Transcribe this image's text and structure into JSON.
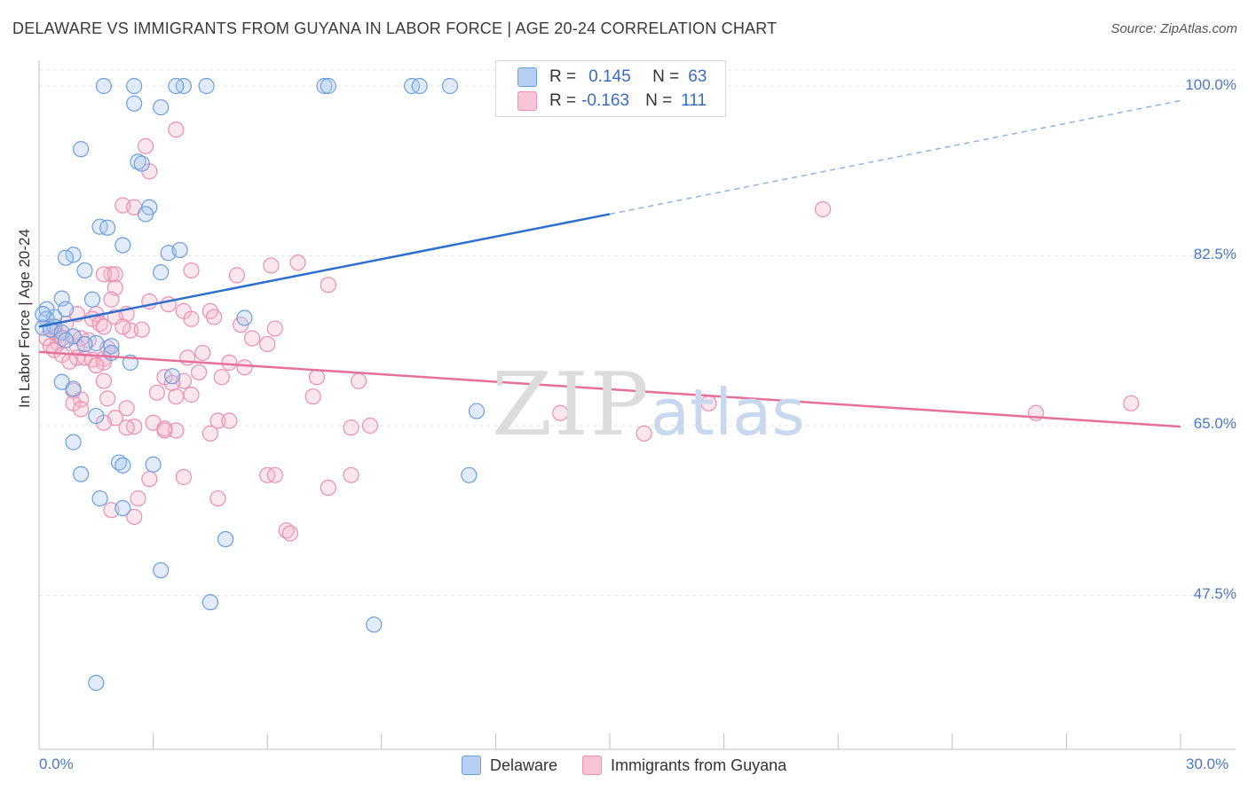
{
  "title": "DELAWARE VS IMMIGRANTS FROM GUYANA IN LABOR FORCE | AGE 20-24 CORRELATION CHART",
  "source": "Source: ZipAtlas.com",
  "watermark": {
    "zip": "ZIP",
    "atlas": "atlas"
  },
  "colors": {
    "delaware": "#6b9ee0",
    "guyana": "#ef8fb1",
    "delaware_line": "#2c6fce",
    "guyana_line": "#e5709a",
    "axis_text": "#4a78c8"
  },
  "legend": {
    "delaware": {
      "r_label": "R =",
      "r_value": "0.145",
      "n_label": "N =",
      "n_value": "63"
    },
    "guyana": {
      "r_label": "R =",
      "r_value": "-0.163",
      "n_label": "N =",
      "n_value": "111"
    }
  },
  "chart_data": {
    "type": "scatter",
    "title": "DELAWARE VS IMMIGRANTS FROM GUYANA IN LABOR FORCE | AGE 20-24 CORRELATION CHART",
    "xlabel": "",
    "ylabel": "In Labor Force | Age 20-24",
    "xlim": [
      0,
      30
    ],
    "ylim": [
      30,
      101.5
    ],
    "x_tick_labels": [
      "0.0%",
      "30.0%"
    ],
    "y_ticks": [
      47.5,
      65.0,
      82.5,
      100.0
    ],
    "y_tick_labels": [
      "47.5%",
      "65.0%",
      "82.5%",
      "100.0%"
    ],
    "series": [
      {
        "name": "Delaware",
        "color": "#6b9ee0",
        "trend": {
          "x0": 0.0,
          "y0": 75.2,
          "x1": 15.0,
          "y1": 86.8,
          "dash_to_x": 30.0,
          "dash_to_y": 98.5
        },
        "points": [
          [
            1.7,
            100
          ],
          [
            2.5,
            100
          ],
          [
            3.8,
            100
          ],
          [
            3.6,
            100
          ],
          [
            4.4,
            100
          ],
          [
            7.5,
            100
          ],
          [
            7.6,
            100
          ],
          [
            9.8,
            100
          ],
          [
            10.0,
            100
          ],
          [
            10.8,
            100
          ],
          [
            2.5,
            98.2
          ],
          [
            3.2,
            97.8
          ],
          [
            1.1,
            93.5
          ],
          [
            2.6,
            92.2
          ],
          [
            2.7,
            92.0
          ],
          [
            2.9,
            87.5
          ],
          [
            2.8,
            86.8
          ],
          [
            1.6,
            85.5
          ],
          [
            1.8,
            85.4
          ],
          [
            2.2,
            83.6
          ],
          [
            3.4,
            82.8
          ],
          [
            3.7,
            83.1
          ],
          [
            0.9,
            82.6
          ],
          [
            0.7,
            82.3
          ],
          [
            1.2,
            81.0
          ],
          [
            3.2,
            80.8
          ],
          [
            1.4,
            78.0
          ],
          [
            0.6,
            78.1
          ],
          [
            0.2,
            77.0
          ],
          [
            0.7,
            77.0
          ],
          [
            0.4,
            76.2
          ],
          [
            0.2,
            76.0
          ],
          [
            5.4,
            76.1
          ],
          [
            0.4,
            75.2
          ],
          [
            0.1,
            75.1
          ],
          [
            0.3,
            74.9
          ],
          [
            0.6,
            74.6
          ],
          [
            0.9,
            74.2
          ],
          [
            1.5,
            73.5
          ],
          [
            1.2,
            73.4
          ],
          [
            0.7,
            73.8
          ],
          [
            1.9,
            73.2
          ],
          [
            1.9,
            72.5
          ],
          [
            2.4,
            71.5
          ],
          [
            0.6,
            69.5
          ],
          [
            3.5,
            70.1
          ],
          [
            0.9,
            68.8
          ],
          [
            1.5,
            66.0
          ],
          [
            11.5,
            66.5
          ],
          [
            0.9,
            63.3
          ],
          [
            2.1,
            61.2
          ],
          [
            2.2,
            60.9
          ],
          [
            3.0,
            61.0
          ],
          [
            1.1,
            60.0
          ],
          [
            11.3,
            59.9
          ],
          [
            1.6,
            57.5
          ],
          [
            2.2,
            56.5
          ],
          [
            4.9,
            53.3
          ],
          [
            3.2,
            50.1
          ],
          [
            4.5,
            46.8
          ],
          [
            8.8,
            44.5
          ],
          [
            1.5,
            38.5
          ],
          [
            0.1,
            76.5
          ]
        ]
      },
      {
        "name": "Immigrants from Guyana",
        "color": "#ef8fb1",
        "trend": {
          "x0": 0.0,
          "y0": 72.6,
          "x1": 30.0,
          "y1": 64.9
        },
        "points": [
          [
            3.6,
            95.5
          ],
          [
            2.8,
            93.8
          ],
          [
            2.9,
            91.2
          ],
          [
            2.2,
            87.7
          ],
          [
            2.5,
            87.5
          ],
          [
            20.6,
            87.3
          ],
          [
            6.8,
            81.8
          ],
          [
            6.1,
            81.5
          ],
          [
            4.0,
            81.0
          ],
          [
            5.2,
            80.5
          ],
          [
            1.9,
            80.6
          ],
          [
            1.7,
            80.6
          ],
          [
            2.0,
            80.6
          ],
          [
            7.6,
            79.5
          ],
          [
            2.0,
            79.2
          ],
          [
            1.9,
            78.0
          ],
          [
            2.9,
            77.8
          ],
          [
            3.4,
            77.5
          ],
          [
            3.8,
            76.8
          ],
          [
            4.5,
            76.8
          ],
          [
            1.5,
            76.5
          ],
          [
            1.0,
            76.5
          ],
          [
            2.3,
            76.5
          ],
          [
            4.0,
            76.0
          ],
          [
            4.6,
            76.2
          ],
          [
            1.4,
            76.0
          ],
          [
            1.6,
            75.5
          ],
          [
            5.3,
            75.4
          ],
          [
            1.7,
            75.2
          ],
          [
            0.3,
            75.2
          ],
          [
            6.2,
            75.0
          ],
          [
            2.4,
            74.8
          ],
          [
            0.4,
            74.7
          ],
          [
            0.5,
            74.3
          ],
          [
            0.9,
            74.2
          ],
          [
            5.6,
            74.0
          ],
          [
            0.2,
            74.0
          ],
          [
            1.3,
            73.8
          ],
          [
            0.5,
            73.5
          ],
          [
            6.0,
            73.4
          ],
          [
            1.0,
            73.2
          ],
          [
            0.3,
            73.2
          ],
          [
            1.8,
            73.0
          ],
          [
            0.4,
            72.8
          ],
          [
            1.9,
            72.5
          ],
          [
            4.3,
            72.5
          ],
          [
            0.6,
            72.3
          ],
          [
            1.0,
            72.0
          ],
          [
            1.2,
            72.0
          ],
          [
            1.7,
            71.9
          ],
          [
            1.4,
            71.8
          ],
          [
            1.7,
            71.5
          ],
          [
            0.8,
            71.6
          ],
          [
            1.5,
            71.2
          ],
          [
            5.4,
            71.0
          ],
          [
            4.2,
            70.5
          ],
          [
            3.3,
            70.0
          ],
          [
            7.3,
            70.0
          ],
          [
            4.8,
            70.0
          ],
          [
            1.7,
            69.6
          ],
          [
            3.8,
            69.6
          ],
          [
            3.5,
            69.4
          ],
          [
            8.4,
            69.6
          ],
          [
            0.9,
            68.6
          ],
          [
            3.1,
            68.4
          ],
          [
            3.6,
            68.0
          ],
          [
            7.2,
            68.0
          ],
          [
            1.1,
            67.7
          ],
          [
            1.8,
            67.8
          ],
          [
            17.6,
            67.3
          ],
          [
            0.9,
            67.3
          ],
          [
            2.3,
            66.8
          ],
          [
            1.1,
            66.7
          ],
          [
            28.7,
            67.3
          ],
          [
            13.7,
            66.3
          ],
          [
            26.2,
            66.3
          ],
          [
            2.0,
            65.8
          ],
          [
            4.7,
            65.5
          ],
          [
            5.0,
            65.5
          ],
          [
            3.0,
            65.3
          ],
          [
            1.7,
            65.3
          ],
          [
            8.7,
            65.0
          ],
          [
            2.5,
            64.9
          ],
          [
            2.3,
            64.8
          ],
          [
            3.3,
            64.5
          ],
          [
            3.6,
            64.5
          ],
          [
            8.2,
            64.8
          ],
          [
            4.5,
            64.2
          ],
          [
            15.9,
            64.2
          ],
          [
            6.0,
            59.9
          ],
          [
            6.2,
            59.9
          ],
          [
            8.2,
            59.9
          ],
          [
            3.8,
            59.7
          ],
          [
            2.9,
            59.5
          ],
          [
            7.6,
            58.6
          ],
          [
            4.7,
            57.5
          ],
          [
            2.6,
            57.5
          ],
          [
            1.9,
            56.3
          ],
          [
            2.5,
            55.6
          ],
          [
            6.5,
            54.2
          ],
          [
            6.6,
            53.9
          ],
          [
            3.3,
            64.7
          ],
          [
            4.0,
            68.2
          ],
          [
            2.0,
            76.2
          ],
          [
            0.7,
            75.5
          ],
          [
            0.6,
            74.0
          ],
          [
            2.2,
            75.2
          ],
          [
            1.1,
            74.0
          ],
          [
            2.7,
            74.9
          ],
          [
            5.0,
            71.5
          ],
          [
            3.9,
            72.0
          ]
        ]
      }
    ]
  },
  "bottom_legend": [
    "Delaware",
    "Immigrants from Guyana"
  ]
}
